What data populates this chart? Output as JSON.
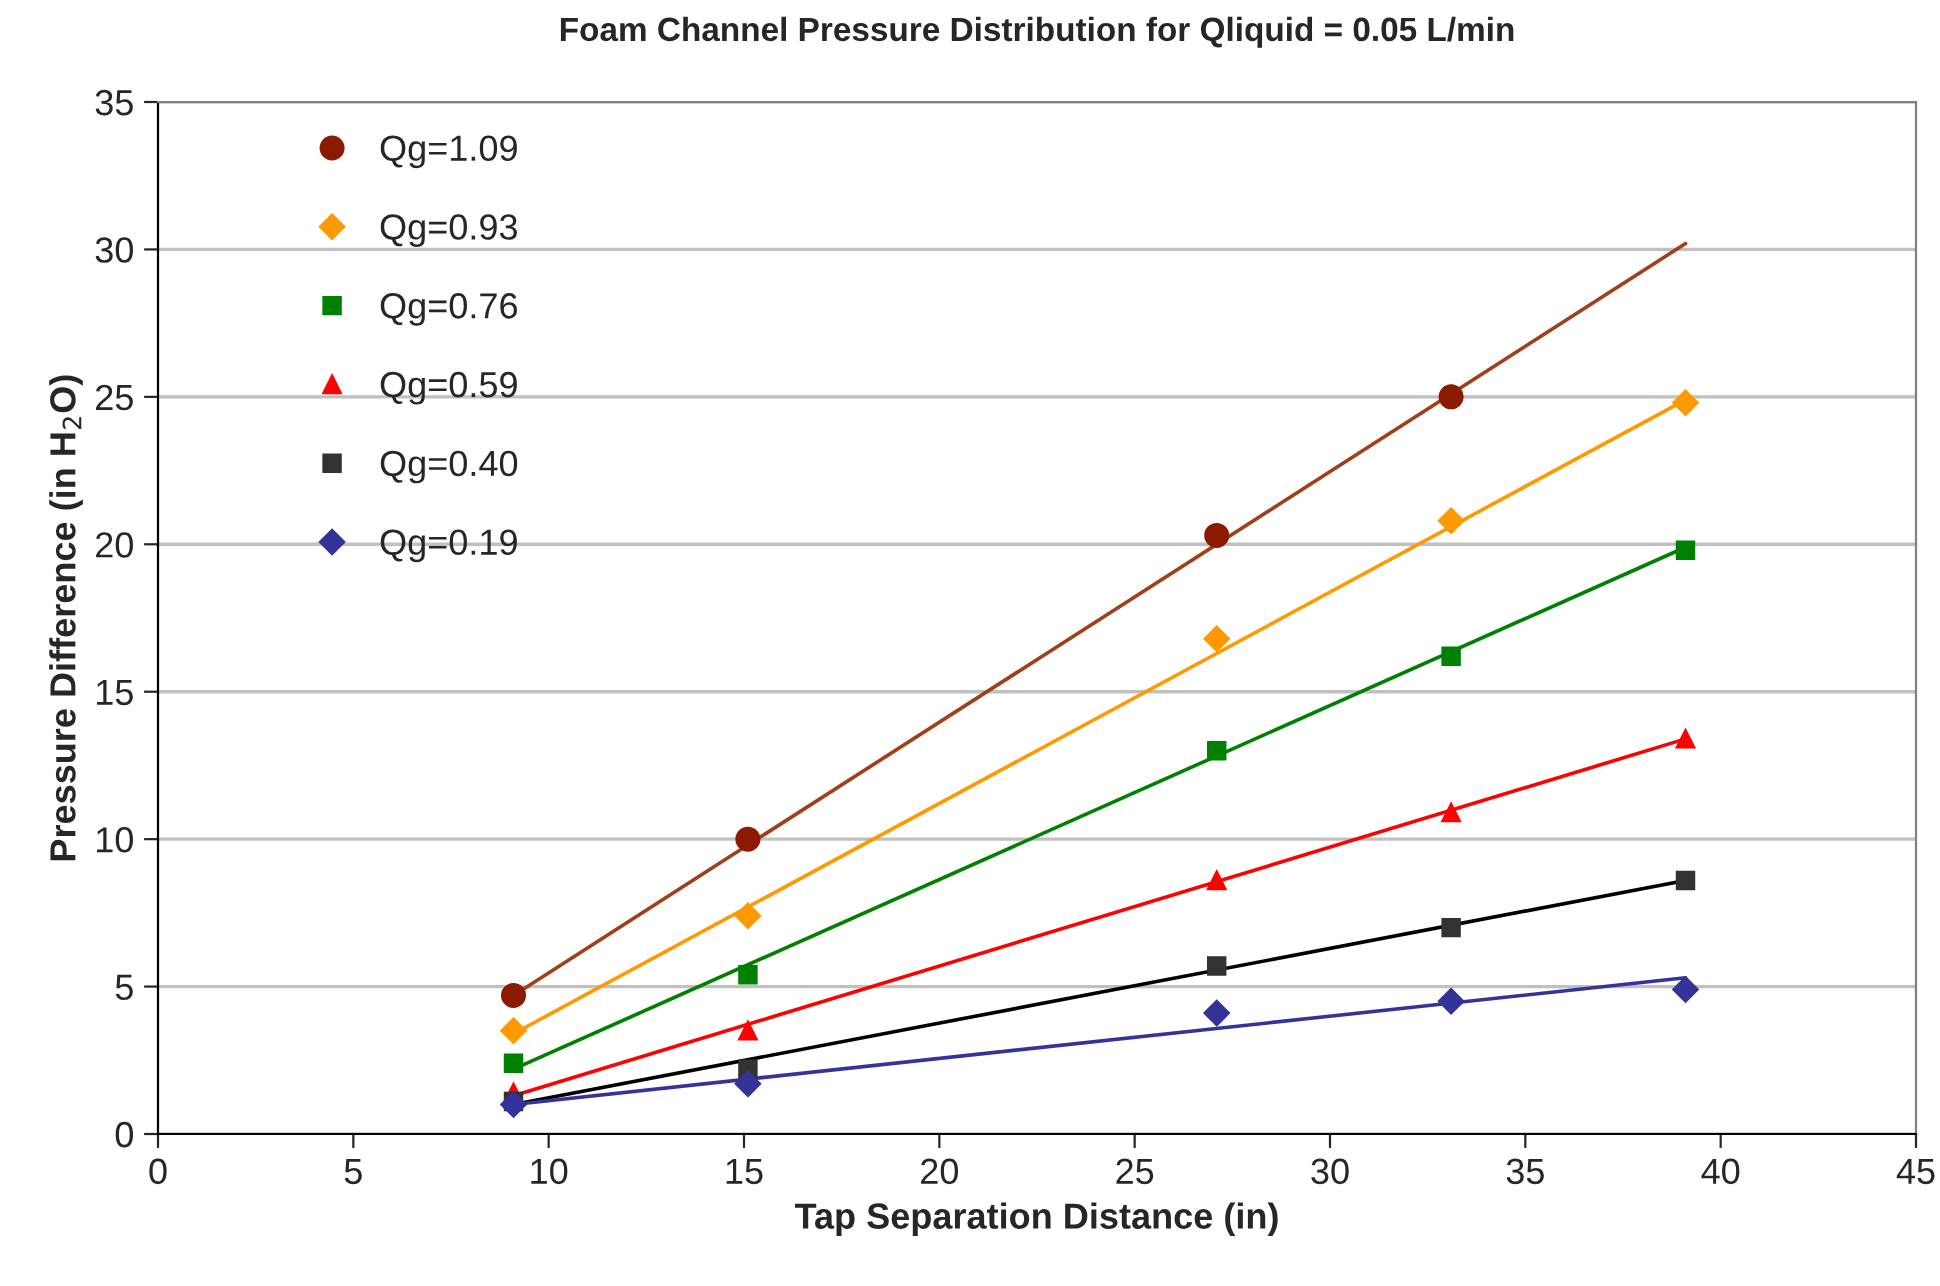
{
  "chart_data": {
    "type": "scatter",
    "title": "Foam Channel Pressure Distribution for Qliquid = 0.05 L/min",
    "xlabel": "Tap Separation Distance (in)",
    "ylabel": "Pressure Difference (in H$_{2}$O)",
    "xlim": [
      0,
      45
    ],
    "xticks": [
      0,
      5,
      10,
      15,
      20,
      25,
      30,
      35,
      40,
      45
    ],
    "ylim": [
      0,
      35
    ],
    "yticks": [
      0,
      5,
      10,
      15,
      20,
      25,
      30,
      35
    ],
    "grid": "y",
    "legend": "top left",
    "series": [
      {
        "name": "Qg=1.09",
        "color": "#8b1a00",
        "marker": "circle",
        "x": [
          9.1,
          15.1,
          27.1,
          33.1
        ],
        "values": [
          4.7,
          10.0,
          20.3,
          25.0
        ]
      },
      {
        "name": "Qg=0.93",
        "color": "#ff9900",
        "marker": "diamond",
        "x": [
          9.1,
          15.1,
          27.1,
          33.1,
          39.1
        ],
        "values": [
          3.5,
          7.4,
          16.8,
          20.8,
          24.8
        ]
      },
      {
        "name": "Qg=0.76",
        "color": "#008000",
        "marker": "square",
        "x": [
          9.1,
          15.1,
          27.1,
          33.1,
          39.1
        ],
        "values": [
          2.4,
          5.4,
          13.0,
          16.2,
          19.8
        ]
      },
      {
        "name": "Qg=0.59",
        "color": "#ff0000",
        "marker": "triangle",
        "x": [
          9.1,
          15.1,
          27.1,
          33.1,
          39.1
        ],
        "values": [
          1.4,
          3.5,
          8.6,
          10.9,
          13.4
        ]
      },
      {
        "name": "Qg=0.40",
        "color": "#333333",
        "marker": "square",
        "x": [
          9.1,
          15.1,
          27.1,
          33.1,
          39.1
        ],
        "values": [
          1.1,
          2.2,
          5.7,
          7.0,
          8.6
        ]
      },
      {
        "name": "Qg=0.19",
        "color": "#333399",
        "marker": "diamond",
        "x": [
          9.1,
          15.1,
          27.1,
          33.1,
          39.1
        ],
        "values": [
          1.0,
          1.7,
          4.1,
          4.5,
          4.9
        ]
      },
      {
        "type": "line",
        "color": "#a0401a",
        "x": [
          9.1,
          39.1
        ],
        "values": [
          4.7,
          30.2
        ]
      },
      {
        "type": "line",
        "color": "#ff9900",
        "x": [
          9.1,
          39.1
        ],
        "values": [
          3.4,
          24.9
        ]
      },
      {
        "type": "line",
        "color": "#008000",
        "x": [
          9.1,
          39.1
        ],
        "values": [
          2.2,
          19.9
        ]
      },
      {
        "type": "line",
        "color": "#ff0000",
        "x": [
          9.1,
          39.1
        ],
        "values": [
          1.3,
          13.4
        ]
      },
      {
        "type": "line",
        "color": "#000000",
        "x": [
          9.1,
          39.1
        ],
        "values": [
          1.0,
          8.6
        ]
      },
      {
        "type": "line",
        "color": "#333399",
        "x": [
          9.1,
          39.1
        ],
        "values": [
          1.0,
          5.3
        ]
      }
    ]
  }
}
